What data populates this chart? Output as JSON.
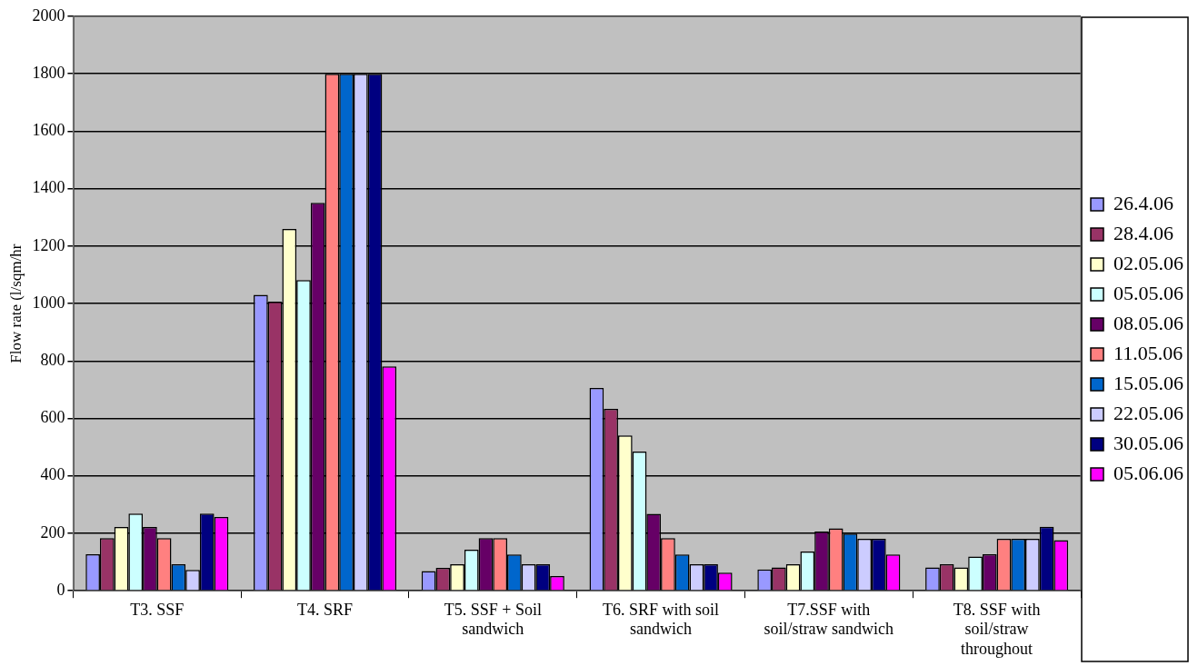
{
  "chart_data": {
    "type": "bar",
    "ylabel": "Flow rate (l/sqm/hr",
    "categories": [
      "T3. SSF",
      "T4. SRF",
      "T5. SSF + Soil sandwich",
      "T6. SRF with soil sandwich",
      "T7.SSF with soil/straw sandwich",
      "T8. SSF with soil/straw throughout"
    ],
    "series": [
      {
        "name": "26.4.06",
        "color": "#9999ff",
        "values": [
          127,
          1030,
          69,
          706,
          74,
          81
        ]
      },
      {
        "name": "28.4.06",
        "color": "#993366",
        "values": [
          183,
          1007,
          80,
          633,
          81,
          92
        ]
      },
      {
        "name": "02.05.06",
        "color": "#ffffcc",
        "values": [
          222,
          1260,
          92,
          541,
          92,
          81
        ]
      },
      {
        "name": "05.05.06",
        "color": "#ccffff",
        "values": [
          269,
          1082,
          143,
          485,
          137,
          119
        ]
      },
      {
        "name": "08.05.06",
        "color": "#660066",
        "values": [
          222,
          1351,
          183,
          268,
          206,
          127
        ]
      },
      {
        "name": "11.05.06",
        "color": "#ff8080",
        "values": [
          183,
          1800,
          183,
          183,
          217,
          181
        ]
      },
      {
        "name": "15.05.06",
        "color": "#0066cc",
        "values": [
          92,
          1800,
          126,
          126,
          199,
          181
        ]
      },
      {
        "name": "22.05.06",
        "color": "#ccccff",
        "values": [
          73,
          1800,
          92,
          92,
          181,
          181
        ]
      },
      {
        "name": "30.05.06",
        "color": "#000080",
        "values": [
          269,
          1800,
          92,
          92,
          181,
          223
        ]
      },
      {
        "name": "05.06.06",
        "color": "#ff00ff",
        "values": [
          257,
          781,
          51,
          63,
          126,
          176
        ]
      }
    ],
    "ylim": [
      0,
      2000
    ],
    "yticks": [
      0,
      200,
      400,
      600,
      800,
      1000,
      1200,
      1400,
      1600,
      1800,
      2000
    ],
    "grid": "y",
    "legend": "right"
  }
}
